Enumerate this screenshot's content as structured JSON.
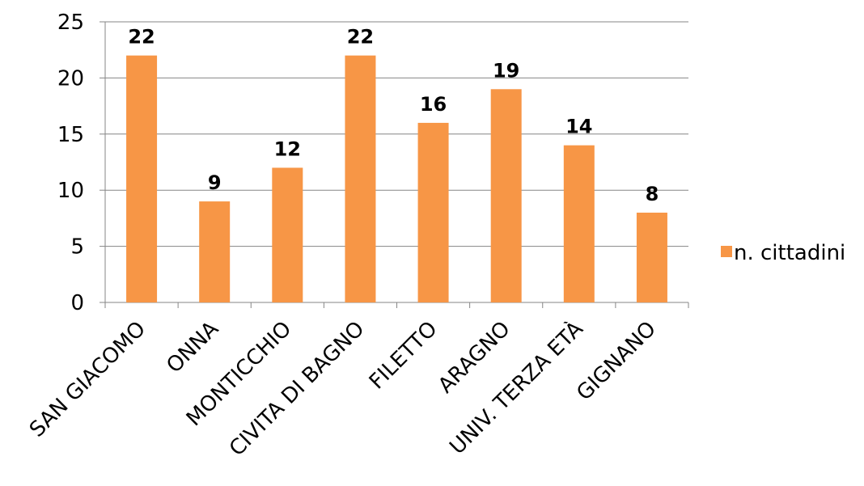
{
  "chart_data": {
    "type": "bar",
    "categories": [
      "SAN GIACOMO",
      "ONNA",
      "MONTICCHIO",
      "CIVITA DI BAGNO",
      "FILETTO",
      "ARAGNO",
      "UNIV. TERZA ETÀ",
      "GIGNANO"
    ],
    "series": [
      {
        "name": "n. cittadini",
        "values": [
          22,
          9,
          12,
          22,
          16,
          19,
          14,
          8
        ],
        "color": "#F79646"
      }
    ],
    "title": "",
    "xlabel": "",
    "ylabel": "",
    "ylim": [
      0,
      25
    ],
    "yticks": [
      0,
      5,
      10,
      15,
      20,
      25
    ],
    "grid": true,
    "data_labels": true,
    "legend_position": "right"
  }
}
